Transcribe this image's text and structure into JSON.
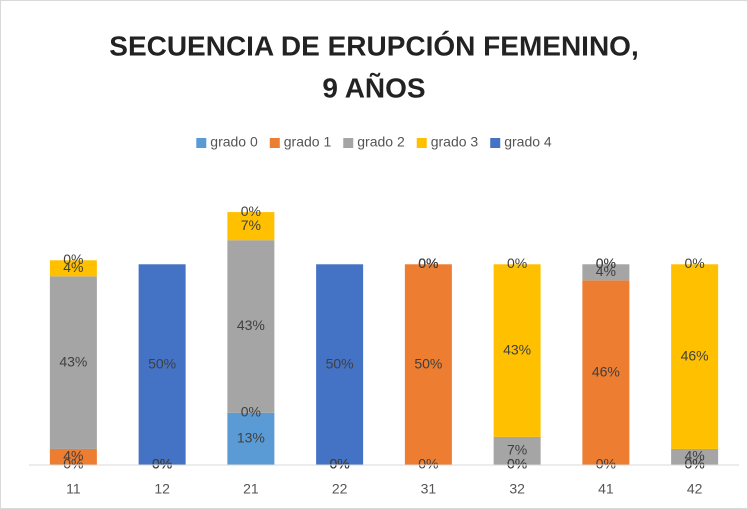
{
  "chart_data": {
    "type": "stacked_bar",
    "title": [
      "SECUENCIA DE ERUPCIÓN FEMENINO,",
      "9 AÑOS"
    ],
    "categories": [
      "11",
      "12",
      "21",
      "22",
      "31",
      "32",
      "41",
      "42"
    ],
    "series": [
      {
        "name": "grado 0",
        "color": "#5b9bd5",
        "values": [
          0,
          0,
          13,
          0,
          0,
          0,
          0,
          0
        ],
        "value_labels": [
          "0%",
          "0%",
          "13%",
          "0%",
          "0%",
          "0%",
          "0%",
          "0%"
        ]
      },
      {
        "name": "grado 1",
        "color": "#ed7d31",
        "values": [
          4,
          0,
          0,
          0,
          50,
          0,
          46,
          0
        ],
        "value_labels": [
          "4%",
          "0%",
          "0%",
          "0%",
          "50%",
          "0%",
          "46%",
          "0%"
        ]
      },
      {
        "name": "grado 2",
        "color": "#a5a5a5",
        "values": [
          43,
          0,
          43,
          0,
          0,
          7,
          4,
          4
        ],
        "value_labels": [
          "43%",
          "0%",
          "43%",
          "0%",
          "0%",
          "7%",
          "4%",
          "4%"
        ]
      },
      {
        "name": "grado 3",
        "color": "#ffc000",
        "values": [
          4,
          0,
          7,
          0,
          0,
          43,
          0,
          46
        ],
        "value_labels": [
          "4%",
          "0%",
          "7%",
          "0%",
          "0%",
          "43%",
          "0%",
          "46%"
        ]
      },
      {
        "name": "grado 4",
        "color": "#4472c4",
        "values": [
          0,
          50,
          0,
          50,
          0,
          0,
          0,
          0
        ],
        "value_labels": [
          "0%",
          "50%",
          "0%",
          "50%",
          "0%",
          "0%",
          "0%",
          "0%"
        ]
      }
    ],
    "ylim": [
      0,
      70
    ],
    "legend": "top"
  }
}
